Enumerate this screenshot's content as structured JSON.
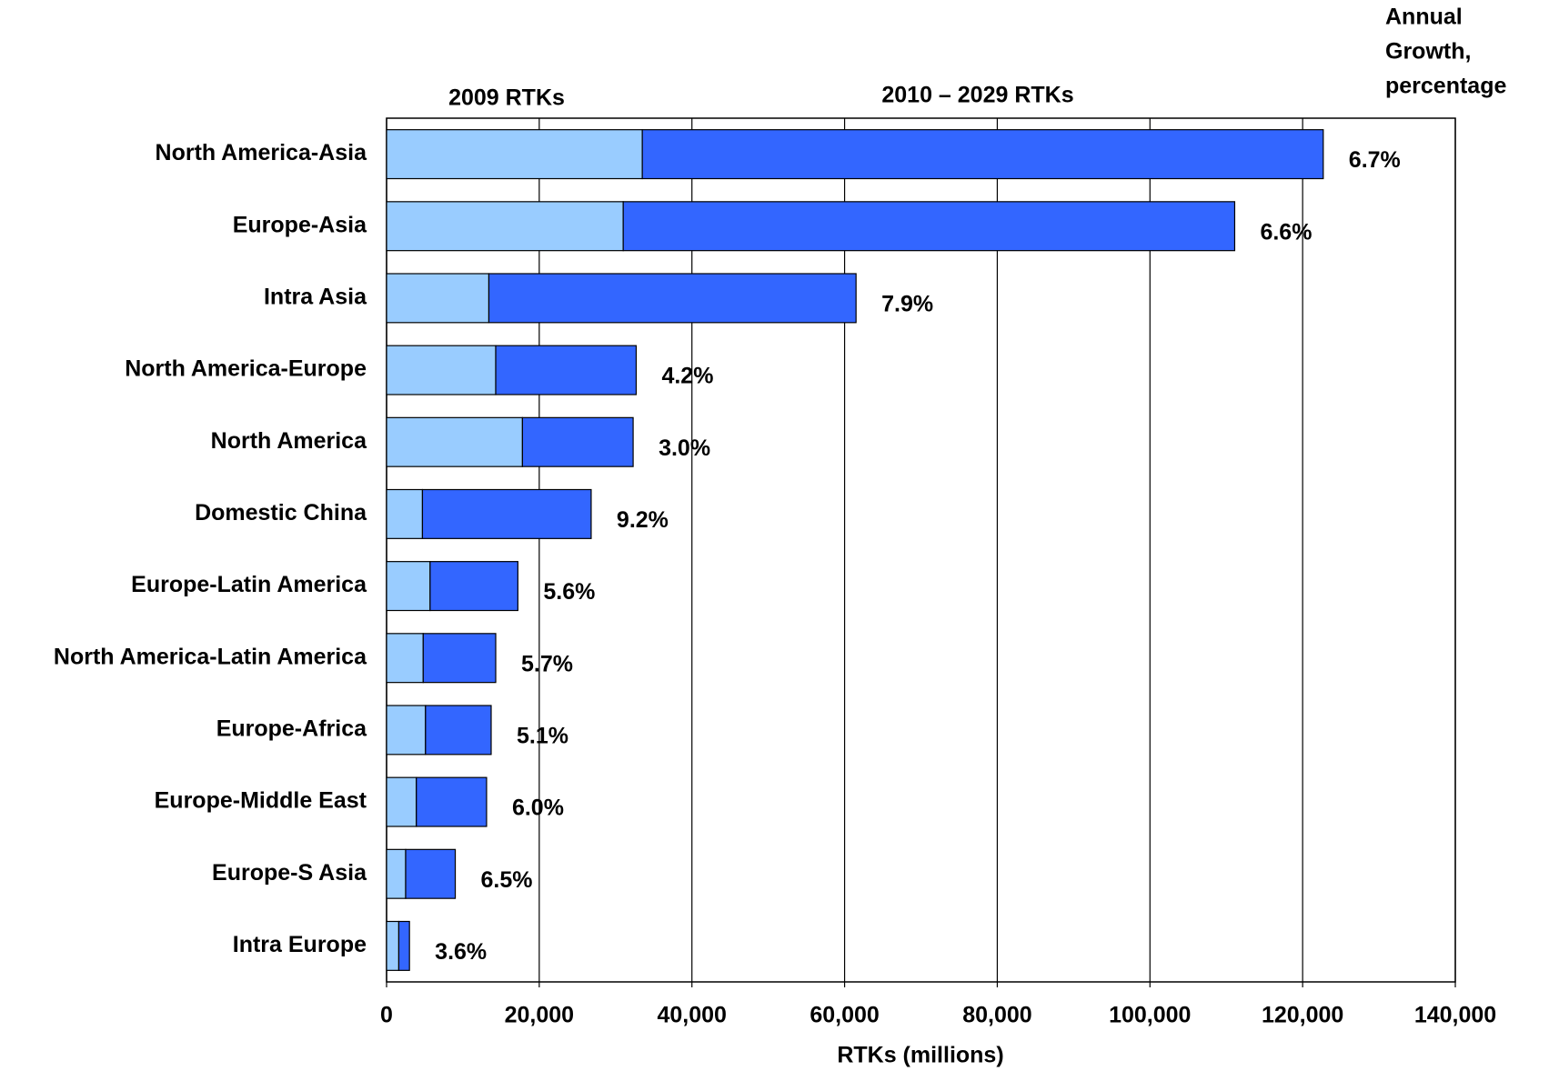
{
  "chart_data": {
    "type": "stacked-barh",
    "x_label": "RTKs (millions)",
    "growth_title": [
      "Annual",
      "Growth,",
      "percentage"
    ],
    "categories": [
      "North America-Asia",
      "Europe-Asia",
      "Intra Asia",
      "North America-Europe",
      "North America",
      "Domestic China",
      "Europe-Latin America",
      "North America-Latin America",
      "Europe-Africa",
      "Europe-Middle East",
      "Europe-S Asia",
      "Intra Europe"
    ],
    "series": [
      {
        "name": "2009 RTKs",
        "color": "#99ccff",
        "values": [
          33500,
          31000,
          13400,
          14300,
          17800,
          4700,
          5700,
          4800,
          5100,
          3900,
          2500,
          1600
        ]
      },
      {
        "name": "2010 – 2029 RTKs",
        "color": "#3366ff",
        "values": [
          89200,
          80100,
          48100,
          18400,
          14500,
          22100,
          11500,
          9500,
          8600,
          9200,
          6500,
          1400
        ]
      }
    ],
    "growth": {
      "values": [
        6.7,
        6.6,
        7.9,
        4.2,
        3.0,
        9.2,
        5.6,
        5.7,
        5.1,
        6.0,
        6.5,
        3.6
      ],
      "value_labels": [
        "6.7%",
        "6.6%",
        "7.9%",
        "4.2%",
        "3.0%",
        "9.2%",
        "5.6%",
        "5.7%",
        "5.1%",
        "6.0%",
        "6.5%",
        "3.6%"
      ]
    },
    "xlim": [
      0,
      140000
    ],
    "xticks": [
      0,
      {
        "value": 20000,
        "label": "20,000"
      },
      {
        "value": 40000,
        "label": "40,000"
      },
      {
        "value": 60000,
        "label": "60,000"
      },
      {
        "value": 80000,
        "label": "80,000"
      },
      {
        "value": 100000,
        "label": "100,000"
      },
      {
        "value": 120000,
        "label": "120,000"
      },
      {
        "value": 140000,
        "label": "140,000"
      }
    ],
    "grid": true
  }
}
